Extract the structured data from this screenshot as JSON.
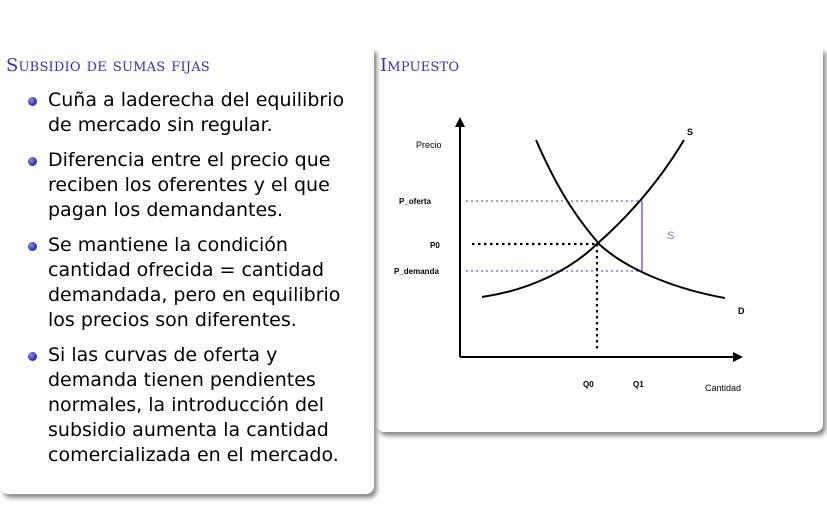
{
  "left_block": {
    "title": "Subsidio de sumas fijas",
    "bullets": [
      "Cuña a laderecha del equilibrio de mercado sin regular.",
      "Diferencia entre el precio que reciben los oferentes y el que pagan los demandantes.",
      "Se mantiene la condición cantidad ofrecida = cantidad demandada, pero en equilibrio los precios son diferentes.",
      "Si las curvas de oferta y demanda tienen pendientes normales, la introducción del subsidio aumenta la cantidad comercializada en el mercado."
    ]
  },
  "right_block": {
    "title": "Impuesto"
  },
  "diagram": {
    "y_axis_label": "Precio",
    "x_axis_label": "Cantidad",
    "supply_label": "S",
    "demand_label": "D",
    "subsidy_label": "S",
    "p_oferta_label": "P_oferta",
    "p0_label": "P0",
    "p_demanda_label": "P_demanda",
    "q0_label": "Q0",
    "q1_label": "Q1",
    "colors": {
      "accent_title": "#3333b3",
      "guide_dotted": "#8080e0",
      "subsidy_bar": "#8060d0",
      "subsidy_text": "#8080e0",
      "curves": "#000000"
    }
  }
}
